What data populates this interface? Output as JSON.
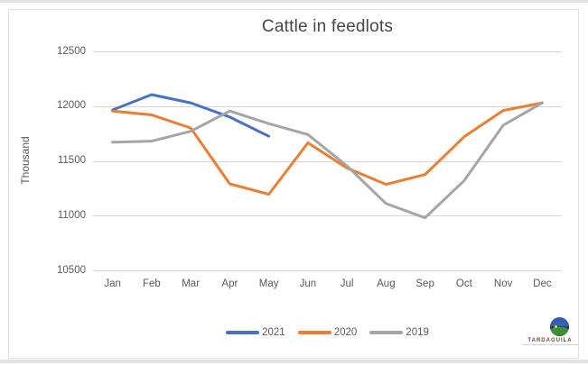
{
  "chart_data": {
    "type": "line",
    "title": "Cattle in feedlots",
    "ylabel": "Thousand",
    "xlabel": "",
    "x": [
      "Jan",
      "Feb",
      "Mar",
      "Apr",
      "May",
      "Jun",
      "Jul",
      "Aug",
      "Sep",
      "Oct",
      "Nov",
      "Dec"
    ],
    "yticks": [
      10500,
      11000,
      11500,
      12000,
      12500
    ],
    "ylim": [
      10500,
      12500
    ],
    "grid": true,
    "legend_position": "bottom",
    "series": [
      {
        "name": "2021",
        "color": "#4472C4",
        "values": [
          11965,
          12105,
          12030,
          11900,
          11725
        ]
      },
      {
        "name": "2020",
        "color": "#ED7D31",
        "values": [
          11955,
          11920,
          11800,
          11290,
          11195,
          11665,
          11435,
          11285,
          11375,
          11720,
          11960,
          12030
        ]
      },
      {
        "name": "2019",
        "color": "#A5A5A5",
        "values": [
          11670,
          11680,
          11770,
          11955,
          11840,
          11740,
          11455,
          11110,
          10980,
          11320,
          11825,
          12030
        ]
      }
    ],
    "gridline_color": "#d6d6d6",
    "text_color": "#595959",
    "title_color": "#474747"
  },
  "logo": {
    "text": "TARDAGUILA"
  }
}
